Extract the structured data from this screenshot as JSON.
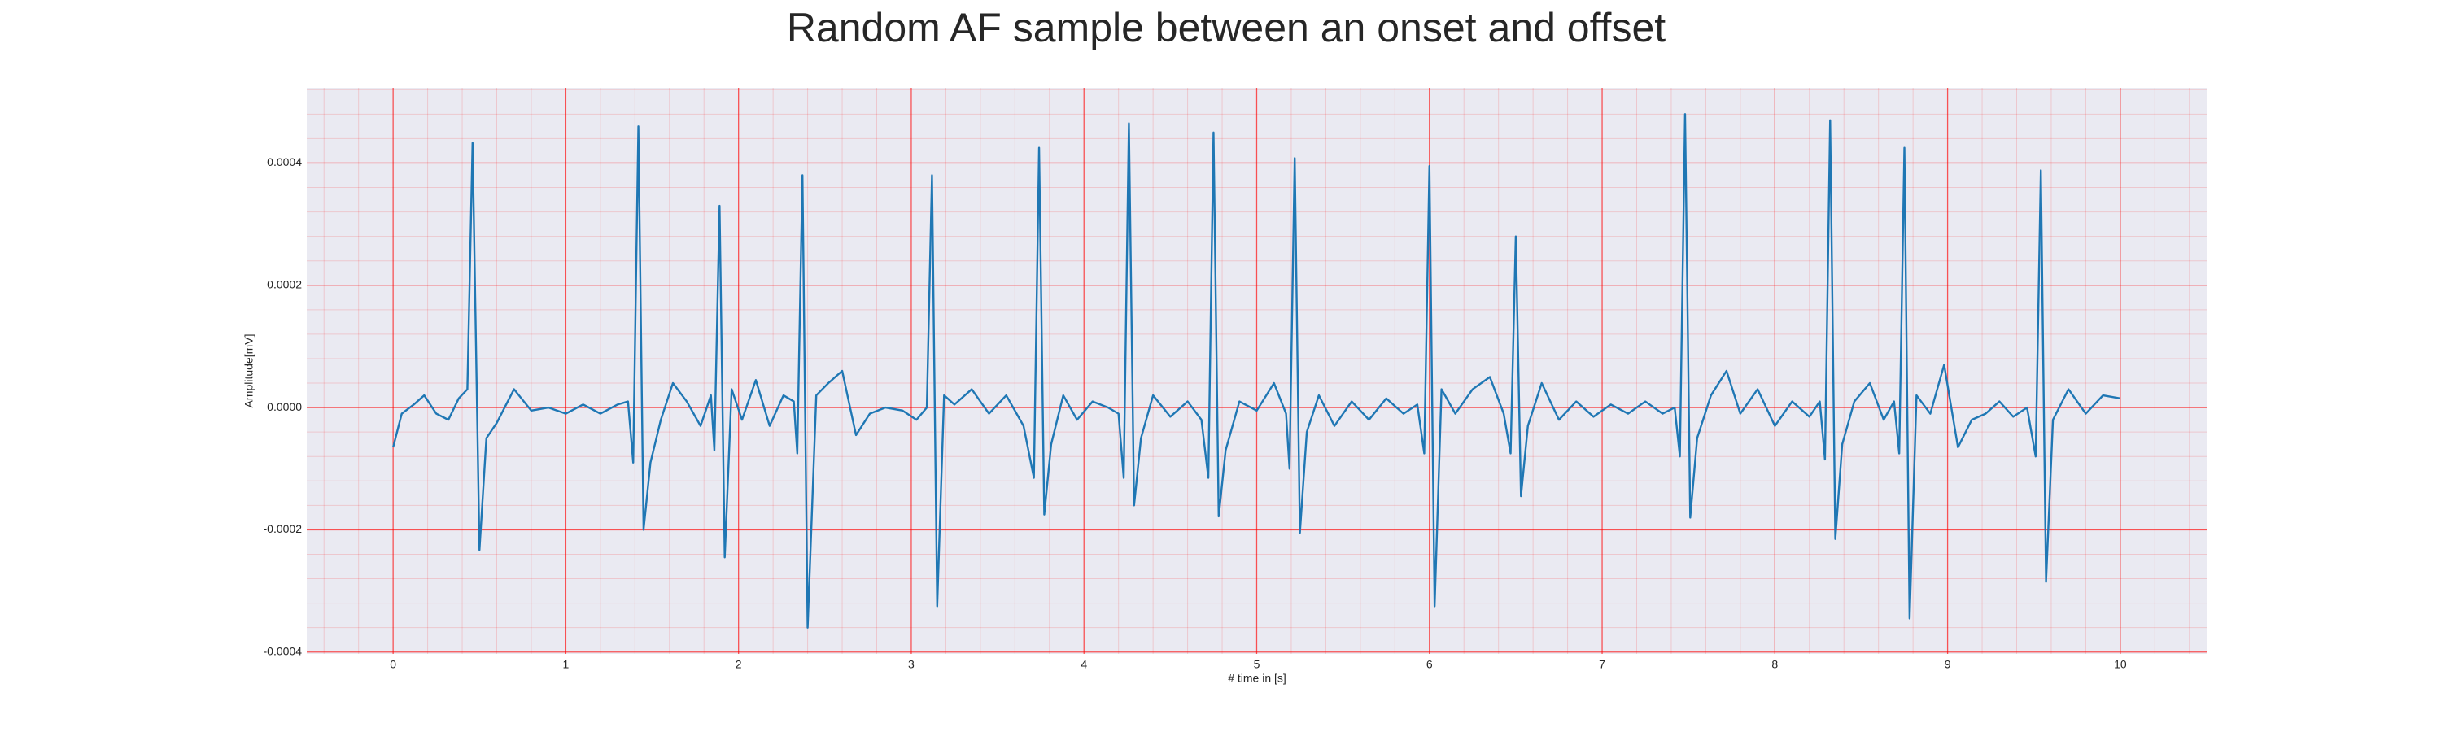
{
  "chart_data": {
    "type": "line",
    "title": "Random AF sample between an onset and offset",
    "xlabel": "# time in [s]",
    "ylabel": "Amplitude[mV]",
    "color": "#1f77b4",
    "background": "#eaeaf2",
    "grid": true,
    "grid_color": "#ff0000",
    "minor_grid": {
      "x": 0.2,
      "y": 4e-05
    },
    "xlim": [
      -0.5,
      10.5
    ],
    "ylim": [
      -0.000403,
      0.000523
    ],
    "xticks": [
      0,
      1,
      2,
      3,
      4,
      5,
      6,
      7,
      8,
      9,
      10
    ],
    "yticks": [
      {
        "value": -0.0004,
        "label": "-0.0004"
      },
      {
        "value": -0.0002,
        "label": "-0.0002"
      },
      {
        "value": 0,
        "label": "0.0000"
      },
      {
        "value": 0.0002,
        "label": "0.0002"
      },
      {
        "value": 0.0004,
        "label": "0.0004"
      }
    ],
    "x": [
      0,
      0.05,
      0.12,
      0.18,
      0.25,
      0.32,
      0.38,
      0.43,
      0.46,
      0.5,
      0.54,
      0.6,
      0.7,
      0.8,
      0.9,
      1.0,
      1.1,
      1.2,
      1.3,
      1.36,
      1.39,
      1.42,
      1.45,
      1.49,
      1.55,
      1.62,
      1.7,
      1.78,
      1.84,
      1.86,
      1.89,
      1.92,
      1.96,
      2.02,
      2.1,
      2.18,
      2.26,
      2.32,
      2.34,
      2.37,
      2.4,
      2.45,
      2.52,
      2.6,
      2.68,
      2.76,
      2.85,
      2.95,
      3.03,
      3.09,
      3.12,
      3.15,
      3.19,
      3.25,
      3.35,
      3.45,
      3.55,
      3.65,
      3.71,
      3.74,
      3.77,
      3.81,
      3.88,
      3.96,
      4.05,
      4.14,
      4.2,
      4.23,
      4.26,
      4.29,
      4.33,
      4.4,
      4.5,
      4.6,
      4.68,
      4.72,
      4.75,
      4.78,
      4.82,
      4.9,
      5.0,
      5.1,
      5.17,
      5.19,
      5.22,
      5.25,
      5.29,
      5.36,
      5.45,
      5.55,
      5.65,
      5.75,
      5.85,
      5.93,
      5.97,
      6.0,
      6.03,
      6.07,
      6.15,
      6.25,
      6.35,
      6.43,
      6.47,
      6.5,
      6.53,
      6.57,
      6.65,
      6.75,
      6.85,
      6.95,
      7.05,
      7.15,
      7.25,
      7.35,
      7.42,
      7.45,
      7.48,
      7.51,
      7.55,
      7.63,
      7.72,
      7.8,
      7.9,
      8.0,
      8.1,
      8.2,
      8.26,
      8.29,
      8.32,
      8.35,
      8.39,
      8.46,
      8.55,
      8.63,
      8.69,
      8.72,
      8.75,
      8.78,
      8.82,
      8.9,
      8.98,
      9.06,
      9.14,
      9.22,
      9.3,
      9.38,
      9.46,
      9.51,
      9.54,
      9.57,
      9.61,
      9.7,
      9.8,
      9.9,
      10.0
    ],
    "values": [
      -6.5e-05,
      -1e-05,
      5e-06,
      2e-05,
      -1e-05,
      -2e-05,
      1.5e-05,
      3e-05,
      0.000433,
      -0.000233,
      -5e-05,
      -2.5e-05,
      3e-05,
      -5e-06,
      0,
      -1e-05,
      5e-06,
      -1e-05,
      5e-06,
      1e-05,
      -9e-05,
      0.00046,
      -0.0002,
      -9e-05,
      -2e-05,
      4e-05,
      1e-05,
      -3e-05,
      2e-05,
      -7e-05,
      0.00033,
      -0.000245,
      3e-05,
      -2e-05,
      4.5e-05,
      -3e-05,
      2e-05,
      1e-05,
      -7.5e-05,
      0.00038,
      -0.00036,
      2e-05,
      4e-05,
      6e-05,
      -4.5e-05,
      -1e-05,
      0,
      -5e-06,
      -2e-05,
      0,
      0.00038,
      -0.000325,
      2e-05,
      5e-06,
      3e-05,
      -1e-05,
      2e-05,
      -3e-05,
      -0.000115,
      0.000425,
      -0.000175,
      -6e-05,
      2e-05,
      -2e-05,
      1e-05,
      0,
      -1e-05,
      -0.000115,
      0.000465,
      -0.00016,
      -5e-05,
      2e-05,
      -1.5e-05,
      1e-05,
      -2e-05,
      -0.000115,
      0.00045,
      -0.000178,
      -7e-05,
      1e-05,
      -5e-06,
      4e-05,
      -1e-05,
      -0.0001,
      0.000408,
      -0.000205,
      -4e-05,
      2e-05,
      -3e-05,
      1e-05,
      -2e-05,
      1.5e-05,
      -1e-05,
      5e-06,
      -7.5e-05,
      0.000395,
      -0.000325,
      3e-05,
      -1e-05,
      3e-05,
      5e-05,
      -1e-05,
      -7.5e-05,
      0.00028,
      -0.000145,
      -3e-05,
      4e-05,
      -2e-05,
      1e-05,
      -1.5e-05,
      5e-06,
      -1e-05,
      1e-05,
      -1e-05,
      0,
      -8e-05,
      0.00048,
      -0.00018,
      -5e-05,
      2e-05,
      6e-05,
      -1e-05,
      3e-05,
      -3e-05,
      1e-05,
      -1.5e-05,
      1e-05,
      -8.5e-05,
      0.00047,
      -0.000215,
      -6e-05,
      1e-05,
      4e-05,
      -2e-05,
      1e-05,
      -7.5e-05,
      0.000425,
      -0.000345,
      2e-05,
      -1e-05,
      7e-05,
      -6.5e-05,
      -2e-05,
      -1e-05,
      1e-05,
      -1.5e-05,
      0,
      -8e-05,
      0.000388,
      -0.000285,
      -2e-05,
      3e-05,
      -1e-05,
      2e-05,
      1.5e-05
    ]
  }
}
